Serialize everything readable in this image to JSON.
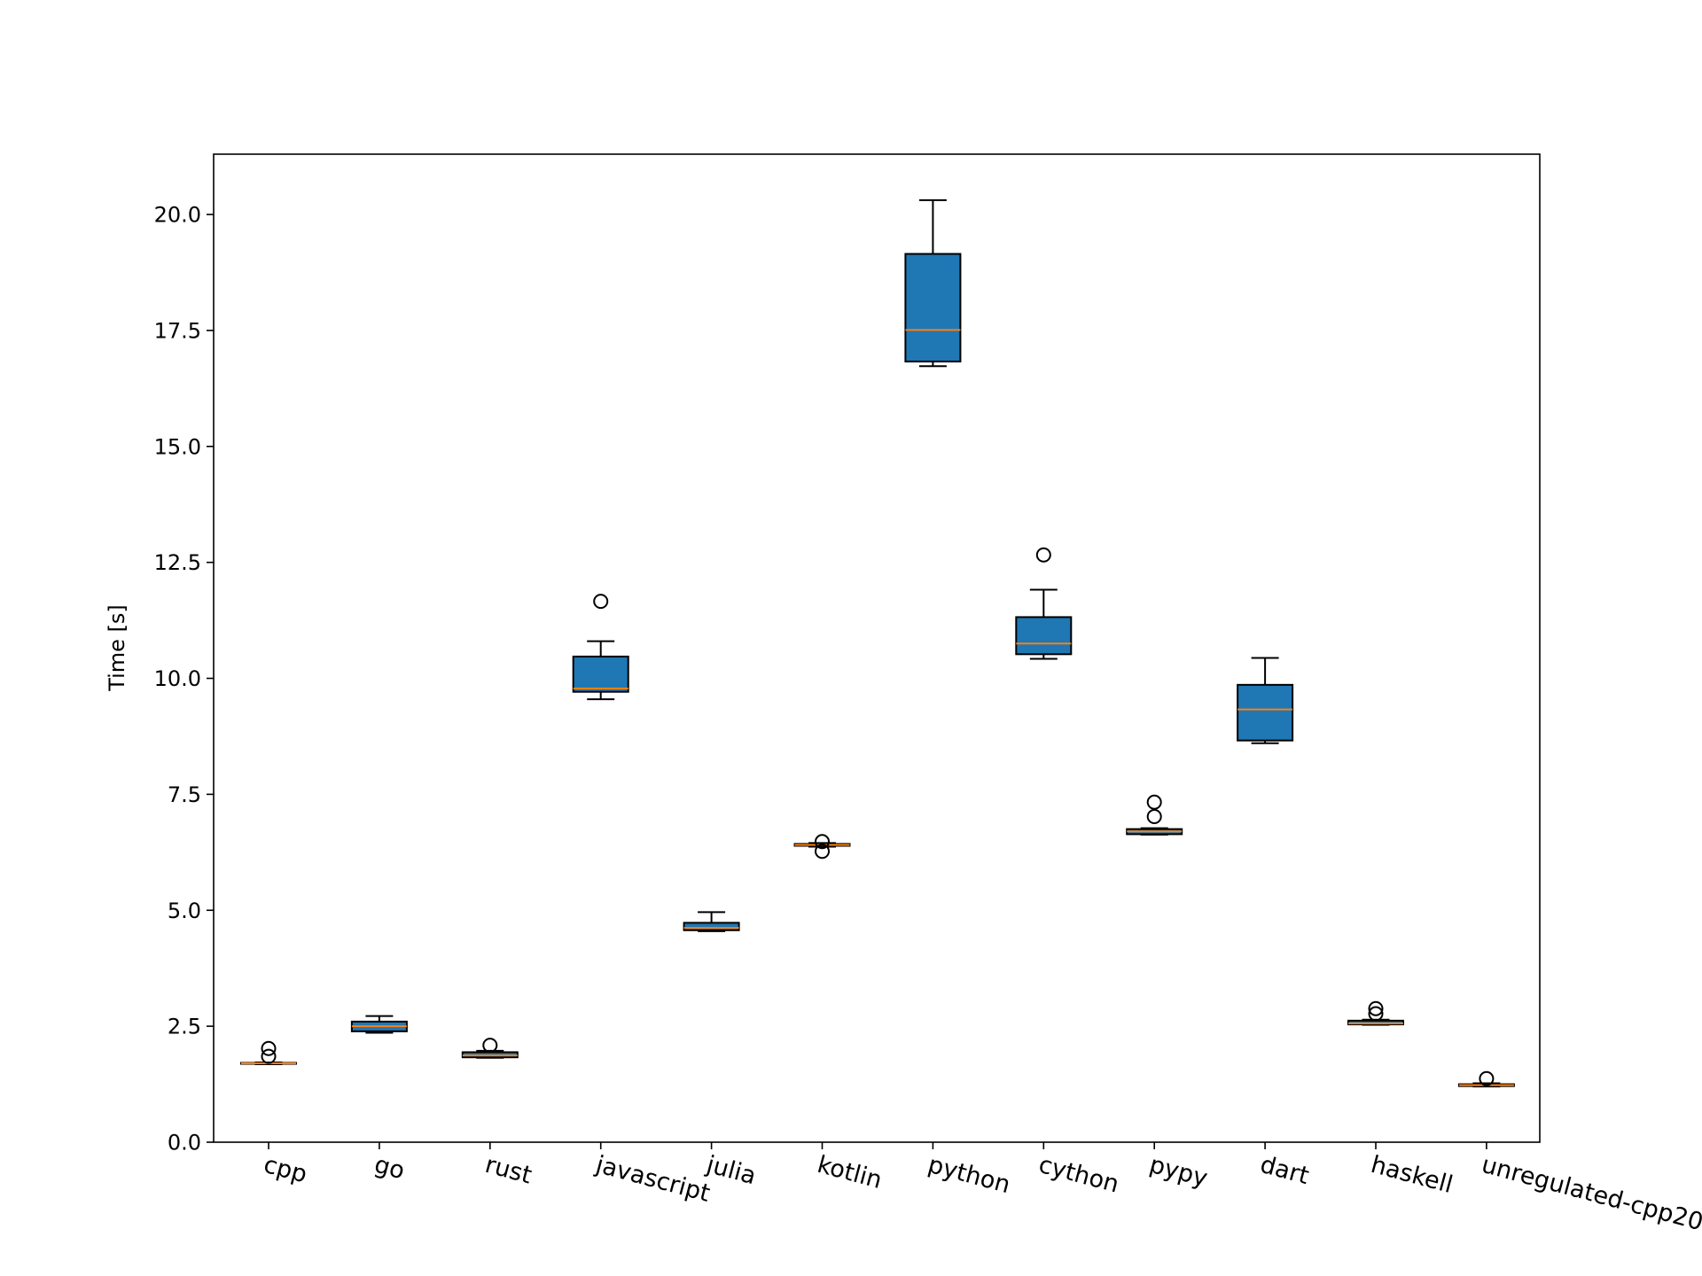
{
  "chart_data": {
    "type": "box",
    "title": "",
    "xlabel": "",
    "ylabel": "Time [s]",
    "ylim": [
      0,
      21.3
    ],
    "yticks": [
      "0.0",
      "2.5",
      "5.0",
      "7.5",
      "10.0",
      "12.5",
      "15.0",
      "17.5",
      "20.0"
    ],
    "grid": false,
    "categories": [
      "cpp",
      "go",
      "rust",
      "javascript",
      "julia",
      "kotlin",
      "python",
      "cython",
      "pypy",
      "dart",
      "haskell",
      "unregulated-cpp20"
    ],
    "boxes": [
      {
        "label": "cpp",
        "whislo": 1.68,
        "q1": 1.69,
        "med": 1.7,
        "q3": 1.71,
        "whishi": 1.72,
        "fliers": [
          1.85,
          2.02
        ]
      },
      {
        "label": "go",
        "whislo": 2.36,
        "q1": 2.39,
        "med": 2.5,
        "q3": 2.6,
        "whishi": 2.72,
        "fliers": []
      },
      {
        "label": "rust",
        "whislo": 1.82,
        "q1": 1.83,
        "med": 1.87,
        "q3": 1.94,
        "whishi": 1.97,
        "fliers": [
          2.09
        ]
      },
      {
        "label": "javascript",
        "whislo": 9.55,
        "q1": 9.71,
        "med": 9.78,
        "q3": 10.47,
        "whishi": 10.8,
        "fliers": [
          11.66
        ]
      },
      {
        "label": "julia",
        "whislo": 4.55,
        "q1": 4.57,
        "med": 4.62,
        "q3": 4.73,
        "whishi": 4.96,
        "fliers": []
      },
      {
        "label": "kotlin",
        "whislo": 6.37,
        "q1": 6.39,
        "med": 6.41,
        "q3": 6.43,
        "whishi": 6.45,
        "fliers": [
          6.27,
          6.48
        ]
      },
      {
        "label": "python",
        "whislo": 16.73,
        "q1": 16.83,
        "med": 17.51,
        "q3": 19.15,
        "whishi": 20.31,
        "fliers": []
      },
      {
        "label": "cython",
        "whislo": 10.42,
        "q1": 10.52,
        "med": 10.75,
        "q3": 11.32,
        "whishi": 11.91,
        "fliers": [
          12.66
        ]
      },
      {
        "label": "pypy",
        "whislo": 6.63,
        "q1": 6.64,
        "med": 6.7,
        "q3": 6.75,
        "whishi": 6.77,
        "fliers": [
          7.02,
          7.33
        ]
      },
      {
        "label": "dart",
        "whislo": 8.6,
        "q1": 8.66,
        "med": 9.33,
        "q3": 9.86,
        "whishi": 10.44,
        "fliers": []
      },
      {
        "label": "haskell",
        "whislo": 2.53,
        "q1": 2.54,
        "med": 2.56,
        "q3": 2.62,
        "whishi": 2.64,
        "fliers": [
          2.77,
          2.88
        ]
      },
      {
        "label": "unregulated-cpp20",
        "whislo": 1.2,
        "q1": 1.21,
        "med": 1.23,
        "q3": 1.25,
        "whishi": 1.27,
        "fliers": [
          1.37
        ]
      }
    ],
    "colors": {
      "box_fill": "#1f77b4",
      "median": "#ff7f0e",
      "edge": "#000000",
      "background": "#ffffff"
    }
  }
}
